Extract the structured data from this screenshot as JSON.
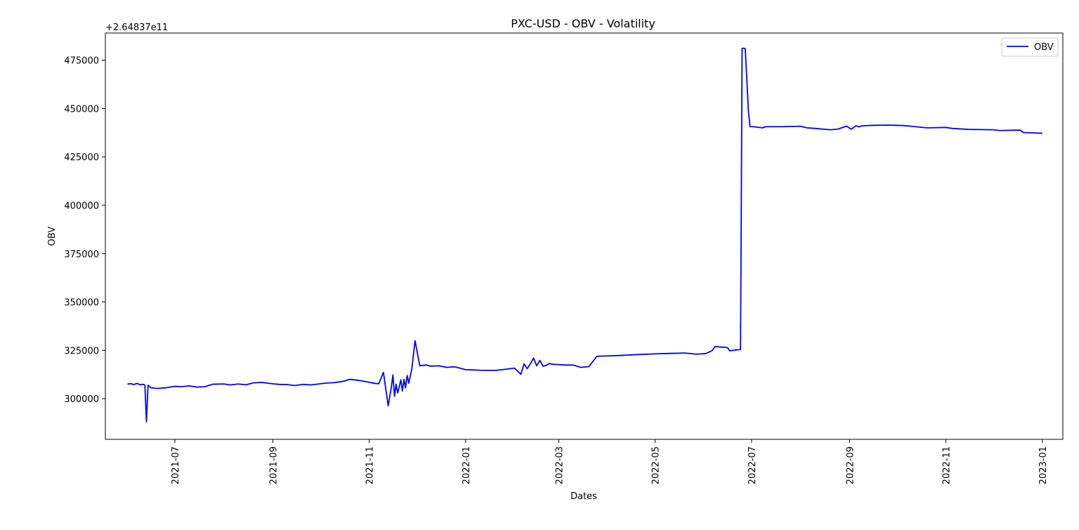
{
  "chart_data": {
    "type": "line",
    "title": "PXC-USD - OBV - Volatility",
    "xlabel": "Dates",
    "ylabel": "OBV",
    "offset_text": "+2.64837e11",
    "xlim": [
      "2021-05-18",
      "2023-01-14"
    ],
    "ylim": [
      279000,
      489000
    ],
    "x_ticks": [
      "2021-07",
      "2021-09",
      "2021-11",
      "2022-01",
      "2022-03",
      "2022-05",
      "2022-07",
      "2022-09",
      "2022-11",
      "2023-01"
    ],
    "y_ticks": [
      "300000",
      "325000",
      "350000",
      "375000",
      "400000",
      "425000",
      "450000",
      "475000"
    ],
    "grid": false,
    "legend": {
      "position": "upper right",
      "entries": [
        "OBV"
      ]
    },
    "series": [
      {
        "name": "OBV",
        "color": "#0000ff",
        "x": [
          "2021-06-01",
          "2021-06-03",
          "2021-06-05",
          "2021-06-07",
          "2021-06-09",
          "2021-06-11",
          "2021-06-12",
          "2021-06-13",
          "2021-06-14",
          "2021-06-16",
          "2021-06-20",
          "2021-06-25",
          "2021-07-01",
          "2021-07-05",
          "2021-07-10",
          "2021-07-15",
          "2021-07-20",
          "2021-07-25",
          "2021-08-01",
          "2021-08-05",
          "2021-08-10",
          "2021-08-15",
          "2021-08-20",
          "2021-08-25",
          "2021-09-01",
          "2021-09-05",
          "2021-09-10",
          "2021-09-15",
          "2021-09-20",
          "2021-09-25",
          "2021-10-01",
          "2021-10-05",
          "2021-10-10",
          "2021-10-15",
          "2021-10-20",
          "2021-10-25",
          "2021-10-30",
          "2021-11-04",
          "2021-11-07",
          "2021-11-10",
          "2021-11-13",
          "2021-11-15",
          "2021-11-16",
          "2021-11-17",
          "2021-11-18",
          "2021-11-19",
          "2021-11-20",
          "2021-11-21",
          "2021-11-22",
          "2021-11-23",
          "2021-11-24",
          "2021-11-25",
          "2021-11-26",
          "2021-11-28",
          "2021-11-30",
          "2021-12-03",
          "2021-12-07",
          "2021-12-10",
          "2021-12-15",
          "2021-12-20",
          "2021-12-25",
          "2022-01-01",
          "2022-01-05",
          "2022-01-10",
          "2022-01-20",
          "2022-02-01",
          "2022-02-05",
          "2022-02-07",
          "2022-02-09",
          "2022-02-11",
          "2022-02-13",
          "2022-02-15",
          "2022-02-17",
          "2022-02-19",
          "2022-02-21",
          "2022-02-23",
          "2022-02-25",
          "2022-03-01",
          "2022-03-05",
          "2022-03-10",
          "2022-03-15",
          "2022-03-20",
          "2022-03-25",
          "2022-03-27",
          "2022-04-01",
          "2022-04-10",
          "2022-04-20",
          "2022-05-01",
          "2022-05-10",
          "2022-05-20",
          "2022-05-27",
          "2022-06-02",
          "2022-06-06",
          "2022-06-08",
          "2022-06-10",
          "2022-06-15",
          "2022-06-16",
          "2022-06-17",
          "2022-06-24",
          "2022-06-25",
          "2022-06-26",
          "2022-06-27",
          "2022-06-29",
          "2022-06-30",
          "2022-07-02",
          "2022-07-08",
          "2022-07-10",
          "2022-07-15",
          "2022-07-20",
          "2022-08-01",
          "2022-08-05",
          "2022-08-10",
          "2022-08-20",
          "2022-08-25",
          "2022-08-30",
          "2022-09-02",
          "2022-09-05",
          "2022-09-07",
          "2022-09-09",
          "2022-09-15",
          "2022-09-25",
          "2022-10-05",
          "2022-10-10",
          "2022-10-20",
          "2022-11-01",
          "2022-11-05",
          "2022-11-15",
          "2022-12-01",
          "2022-12-05",
          "2022-12-15",
          "2022-12-18",
          "2022-12-20",
          "2022-12-25",
          "2023-01-01"
        ],
        "y": [
          307500,
          307800,
          307300,
          307900,
          307200,
          307400,
          307100,
          288000,
          307000,
          305600,
          305300,
          305600,
          306400,
          306200,
          306600,
          306000,
          306200,
          307500,
          307600,
          307100,
          307600,
          307200,
          308200,
          308400,
          307700,
          307400,
          307300,
          306800,
          307400,
          307100,
          307700,
          308100,
          308300,
          308900,
          310000,
          309500,
          308800,
          308000,
          307700,
          313600,
          296300,
          306000,
          312300,
          301200,
          307500,
          303000,
          306000,
          309800,
          304000,
          310000,
          305600,
          312000,
          308000,
          315500,
          330000,
          317000,
          317400,
          316800,
          317000,
          316200,
          316500,
          315000,
          314900,
          314700,
          314600,
          315800,
          312600,
          318000,
          315500,
          318000,
          321000,
          317000,
          319800,
          316800,
          317200,
          318200,
          317800,
          317600,
          317400,
          317400,
          316200,
          316600,
          321800,
          322000,
          322100,
          322400,
          322800,
          323200,
          323400,
          323600,
          323000,
          323300,
          324800,
          327000,
          326800,
          326500,
          326200,
          324800,
          325400,
          481000,
          481200,
          480800,
          448800,
          440600,
          440600,
          440000,
          440600,
          440600,
          440600,
          440800,
          440000,
          439700,
          439000,
          439400,
          440900,
          439300,
          441000,
          440600,
          441000,
          441300,
          441400,
          441200,
          440800,
          440000,
          440200,
          439700,
          439200,
          439000,
          438600,
          438800,
          438800,
          437600,
          437400,
          437200
        ]
      }
    ]
  }
}
